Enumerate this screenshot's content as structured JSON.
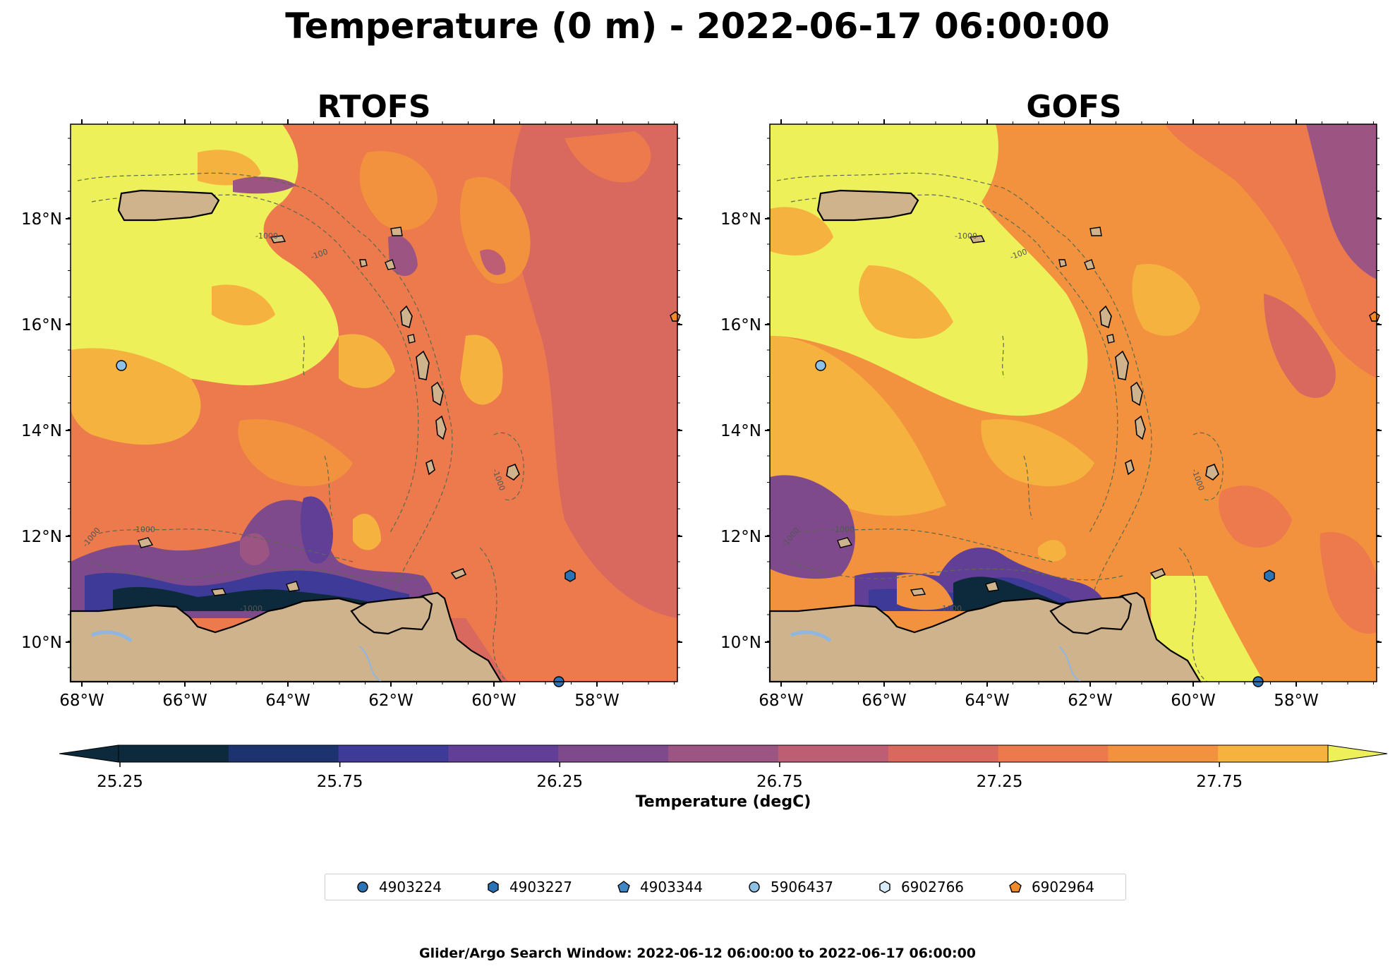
{
  "title": "Temperature (0 m) - 2022-06-17 06:00:00",
  "panels": [
    {
      "title": "RTOFS"
    },
    {
      "title": "GOFS"
    }
  ],
  "lat_ticks": [
    "10°N",
    "12°N",
    "14°N",
    "16°N",
    "18°N"
  ],
  "lon_ticks": [
    "68°W",
    "66°W",
    "64°W",
    "62°W",
    "60°W",
    "58°W"
  ],
  "bathymetry_labels": [
    "-1000",
    "-100"
  ],
  "colorbar": {
    "label": "Temperature (degC)",
    "ticks": [
      "25.25",
      "25.75",
      "26.25",
      "26.75",
      "27.25",
      "27.75"
    ],
    "colors": [
      "#0d2a3c",
      "#1d3370",
      "#3d3a98",
      "#623f97",
      "#7e4a8c",
      "#9c5583",
      "#bd5e74",
      "#d9685f",
      "#ec7a4d",
      "#f3923e",
      "#f6b23f",
      "#eef05a"
    ]
  },
  "legend": [
    {
      "label": "4903224",
      "marker": "circle",
      "color": "#2b73b5"
    },
    {
      "label": "4903227",
      "marker": "hexagon",
      "color": "#2b73b5"
    },
    {
      "label": "4903344",
      "marker": "pentagon",
      "color": "#3f88c6"
    },
    {
      "label": "5906437",
      "marker": "circle",
      "color": "#8fc1e6"
    },
    {
      "label": "6902766",
      "marker": "hexagon",
      "color": "#d8ecfa"
    },
    {
      "label": "6902964",
      "marker": "pentagon",
      "color": "#f08a2a"
    }
  ],
  "footer": "Glider/Argo Search Window: 2022-06-12 06:00:00 to 2022-06-17 06:00:00"
}
